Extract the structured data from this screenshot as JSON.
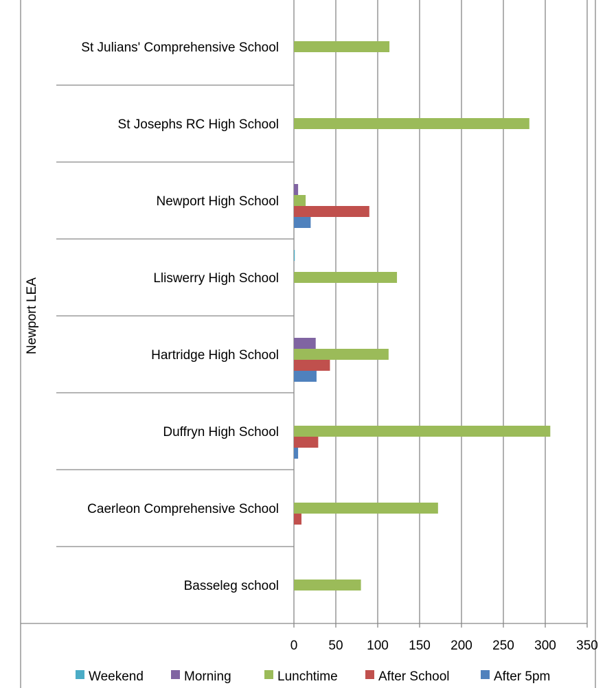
{
  "chart_data": {
    "type": "bar",
    "orientation": "horizontal",
    "group_label": "Newport LEA",
    "categories": [
      "St Julians' Comprehensive School",
      "St Josephs RC High School",
      "Newport High School",
      "Lliswerry High School",
      "Hartridge High School",
      "Duffryn High School",
      "Caerleon Comprehensive School",
      "Basseleg school"
    ],
    "series": [
      {
        "name": "Weekend",
        "color": "#4BACC6",
        "values": [
          0,
          0,
          0,
          1,
          0,
          0,
          0,
          0
        ]
      },
      {
        "name": "Morning",
        "color": "#8064A2",
        "values": [
          0,
          0,
          5,
          0,
          26,
          0,
          0,
          0
        ]
      },
      {
        "name": "Lunchtime",
        "color": "#9BBB59",
        "values": [
          114,
          281,
          14,
          123,
          113,
          306,
          172,
          80
        ]
      },
      {
        "name": "After School",
        "color": "#C0504D",
        "values": [
          0,
          0,
          90,
          0,
          43,
          29,
          9,
          0
        ]
      },
      {
        "name": "After 5pm",
        "color": "#4F81BD",
        "values": [
          0,
          0,
          20,
          0,
          27,
          5,
          0,
          0
        ]
      }
    ],
    "x_ticks": [
      "0",
      "50",
      "100",
      "150",
      "200",
      "250",
      "300",
      "350"
    ],
    "xlim": [
      0,
      350
    ],
    "grid": true,
    "legend_position": "bottom"
  }
}
